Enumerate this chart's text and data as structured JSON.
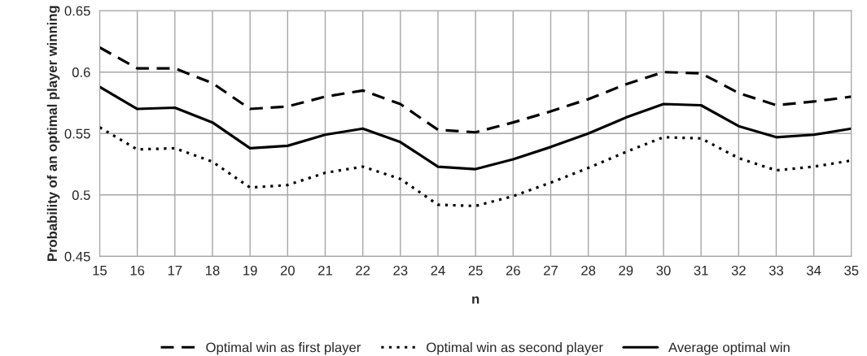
{
  "chart_data": {
    "type": "line",
    "xlabel": "n",
    "ylabel": "Probability of an optimal player winning",
    "categories": [
      "15",
      "16",
      "17",
      "18",
      "19",
      "20",
      "21",
      "22",
      "23",
      "24",
      "25",
      "26",
      "27",
      "28",
      "29",
      "30",
      "31",
      "32",
      "33",
      "34",
      "35"
    ],
    "series": [
      {
        "name": "Optimal win as first player",
        "color": "#000000",
        "line_style": "dashed",
        "values": [
          0.62,
          0.603,
          0.603,
          0.591,
          0.57,
          0.572,
          0.58,
          0.585,
          0.574,
          0.553,
          0.551,
          0.559,
          0.568,
          0.578,
          0.59,
          0.6,
          0.599,
          0.583,
          0.573,
          0.576,
          0.58
        ]
      },
      {
        "name": "Optimal win as second player",
        "color": "#000000",
        "line_style": "dotted",
        "values": [
          0.555,
          0.537,
          0.538,
          0.527,
          0.506,
          0.508,
          0.518,
          0.523,
          0.513,
          0.492,
          0.491,
          0.499,
          0.51,
          0.522,
          0.535,
          0.547,
          0.546,
          0.53,
          0.52,
          0.523,
          0.528
        ]
      },
      {
        "name": "Average optimal win",
        "color": "#000000",
        "line_style": "solid",
        "values": [
          0.588,
          0.57,
          0.571,
          0.559,
          0.538,
          0.54,
          0.549,
          0.554,
          0.543,
          0.523,
          0.521,
          0.529,
          0.539,
          0.55,
          0.563,
          0.574,
          0.573,
          0.556,
          0.547,
          0.549,
          0.554
        ]
      }
    ],
    "ylim": [
      0.45,
      0.65
    ],
    "yticks": [
      0.45,
      0.5,
      0.55,
      0.6,
      0.65
    ],
    "grid": true,
    "legend": "bottom",
    "marker": "none"
  }
}
